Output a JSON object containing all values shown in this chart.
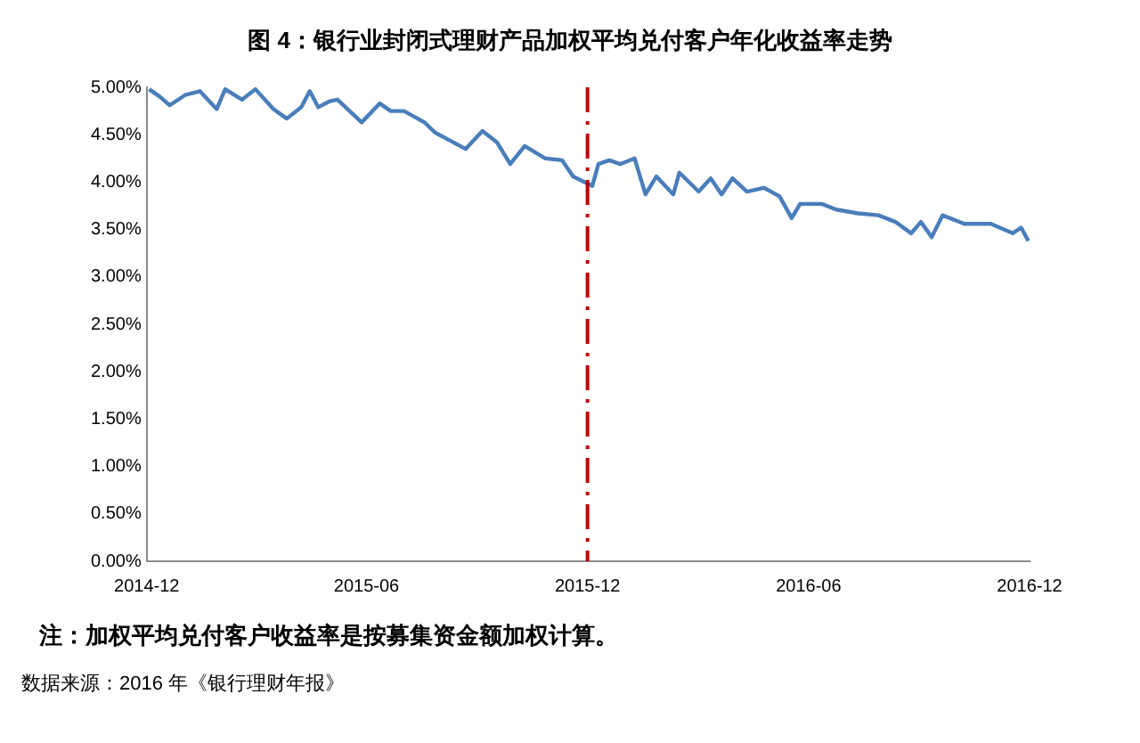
{
  "chart_data": {
    "type": "line",
    "title": "图 4：银行业封闭式理财产品加权平均兑付客户年化收益率走势",
    "x": [
      "2014-12-03",
      "2014-12-12",
      "2014-12-20",
      "2015-01-02",
      "2015-01-14",
      "2015-01-28",
      "2015-02-04",
      "2015-02-18",
      "2015-03-01",
      "2015-03-16",
      "2015-03-27",
      "2015-04-08",
      "2015-04-15",
      "2015-04-22",
      "2015-05-01",
      "2015-05-08",
      "2015-05-28",
      "2015-06-12",
      "2015-06-21",
      "2015-07-02",
      "2015-07-19",
      "2015-07-28",
      "2015-08-09",
      "2015-08-22",
      "2015-09-05",
      "2015-09-17",
      "2015-09-28",
      "2015-10-10",
      "2015-10-27",
      "2015-11-10",
      "2015-11-19",
      "2015-12-05",
      "2015-12-10",
      "2015-12-19",
      "2015-12-28",
      "2016-01-09",
      "2016-01-18",
      "2016-01-27",
      "2016-02-10",
      "2016-02-15",
      "2016-03-02",
      "2016-03-12",
      "2016-03-21",
      "2016-03-30",
      "2016-04-11",
      "2016-04-25",
      "2016-05-08",
      "2016-05-18",
      "2016-05-25",
      "2016-06-12",
      "2016-06-24",
      "2016-07-12",
      "2016-07-29",
      "2016-08-12",
      "2016-08-25",
      "2016-09-02",
      "2016-09-11",
      "2016-09-20",
      "2016-10-08",
      "2016-10-30",
      "2016-11-17",
      "2016-11-24",
      "2016-11-30"
    ],
    "series": [
      {
        "color": "#4a7ebb",
        "values": [
          4.98,
          4.9,
          4.81,
          4.92,
          4.96,
          4.77,
          4.98,
          4.87,
          4.98,
          4.77,
          4.67,
          4.79,
          4.96,
          4.79,
          4.85,
          4.87,
          4.63,
          4.83,
          4.75,
          4.75,
          4.63,
          4.52,
          4.44,
          4.35,
          4.54,
          4.42,
          4.19,
          4.38,
          4.25,
          4.23,
          4.06,
          3.96,
          4.19,
          4.23,
          4.19,
          4.25,
          3.87,
          4.06,
          3.87,
          4.1,
          3.9,
          4.04,
          3.87,
          4.04,
          3.9,
          3.94,
          3.85,
          3.62,
          3.77,
          3.77,
          3.71,
          3.67,
          3.65,
          3.58,
          3.46,
          3.58,
          3.42,
          3.65,
          3.56,
          3.56,
          3.46,
          3.52,
          3.38
        ]
      }
    ],
    "xlim": [
      "2014-12",
      "2016-12"
    ],
    "xticks": [
      "2014-12",
      "2015-06",
      "2015-12",
      "2016-06",
      "2016-12"
    ],
    "ylim": [
      0,
      5
    ],
    "yticks": [
      {
        "value": 0,
        "label": "0.00%"
      },
      {
        "value": 0.5,
        "label": "0.50%"
      },
      {
        "value": 1,
        "label": "1.00%"
      },
      {
        "value": 1.5,
        "label": "1.50%"
      },
      {
        "value": 2,
        "label": "2.00%"
      },
      {
        "value": 2.5,
        "label": "2.50%"
      },
      {
        "value": 3,
        "label": "3.00%"
      },
      {
        "value": 3.5,
        "label": "3.50%"
      },
      {
        "value": 4,
        "label": "4.00%"
      },
      {
        "value": 4.5,
        "label": "4.50%"
      },
      {
        "value": 5,
        "label": "5.00%"
      }
    ],
    "ref_lines": [
      {
        "axis": "x",
        "value": "2015-12",
        "color": "#c00000",
        "line_style": "dashed"
      }
    ],
    "annotations": [
      "注：加权平均兑付客户收益率是按募集资金额加权计算。",
      "数据来源：2016 年《银行理财年报》"
    ],
    "grid": false,
    "legend": false,
    "marker": "none",
    "line_style": "solid"
  }
}
